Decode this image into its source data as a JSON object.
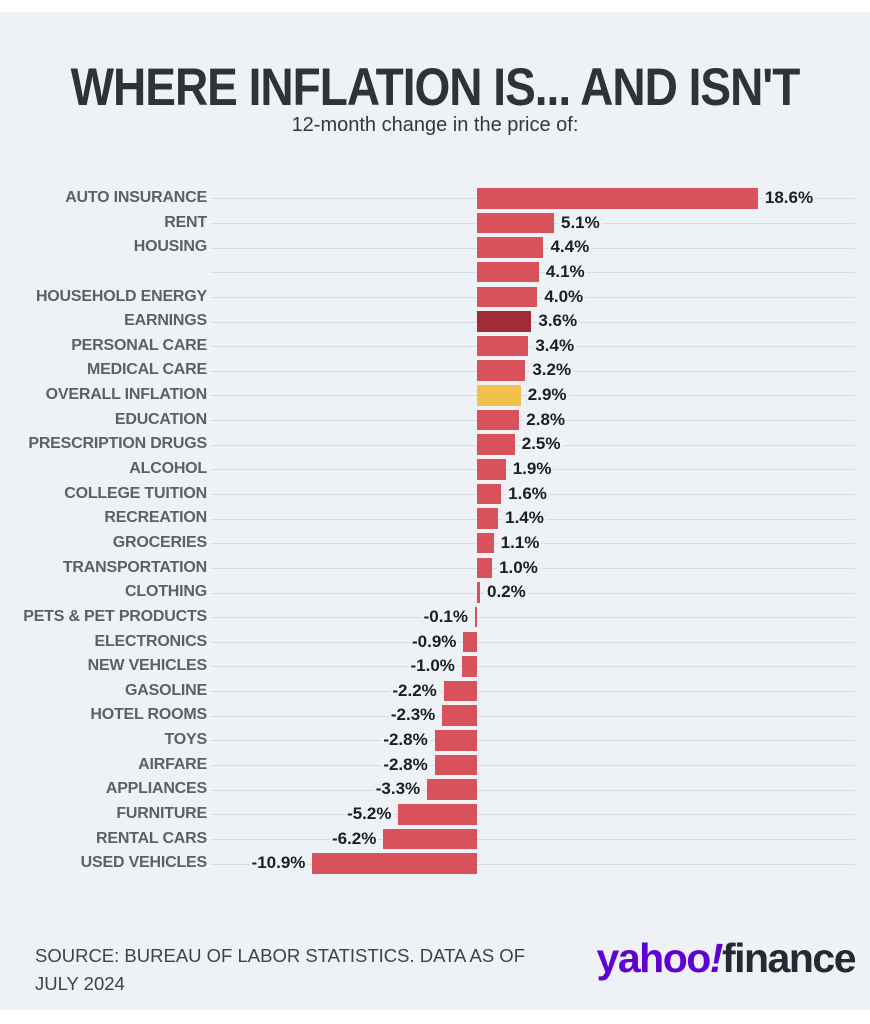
{
  "chart_data": {
    "type": "bar",
    "orientation": "horizontal",
    "title": "WHERE INFLATION IS... AND ISN'T",
    "subtitle": "12-month change in the price of:",
    "unit": "%",
    "xlim": [
      -12,
      20
    ],
    "grid": true,
    "colors": {
      "red": "#d8525b",
      "darkRed": "#a02c37",
      "gold": "#f2c14b"
    },
    "bars": [
      {
        "label": "AUTO INSURANCE",
        "value": 18.6,
        "display": "18.6%",
        "color": "red"
      },
      {
        "label": "RENT",
        "value": 5.1,
        "display": "5.1%",
        "color": "red"
      },
      {
        "label": "HOUSING",
        "value": 4.4,
        "display": "4.4%",
        "color": "red"
      },
      {
        "label": "",
        "value": 4.1,
        "display": "4.1%",
        "color": "red"
      },
      {
        "label": "HOUSEHOLD ENERGY",
        "value": 4.0,
        "display": "4.0%",
        "color": "red"
      },
      {
        "label": "EARNINGS",
        "value": 3.6,
        "display": "3.6%",
        "color": "darkRed"
      },
      {
        "label": "PERSONAL CARE",
        "value": 3.4,
        "display": "3.4%",
        "color": "red"
      },
      {
        "label": "MEDICAL CARE",
        "value": 3.2,
        "display": "3.2%",
        "color": "red"
      },
      {
        "label": "OVERALL INFLATION",
        "value": 2.9,
        "display": "2.9%",
        "color": "gold"
      },
      {
        "label": "EDUCATION",
        "value": 2.8,
        "display": "2.8%",
        "color": "red"
      },
      {
        "label": "PRESCRIPTION DRUGS",
        "value": 2.5,
        "display": "2.5%",
        "color": "red"
      },
      {
        "label": "ALCOHOL",
        "value": 1.9,
        "display": "1.9%",
        "color": "red"
      },
      {
        "label": "COLLEGE TUITION",
        "value": 1.6,
        "display": "1.6%",
        "color": "red"
      },
      {
        "label": "RECREATION",
        "value": 1.4,
        "display": "1.4%",
        "color": "red"
      },
      {
        "label": "GROCERIES",
        "value": 1.1,
        "display": "1.1%",
        "color": "red"
      },
      {
        "label": "TRANSPORTATION",
        "value": 1.0,
        "display": "1.0%",
        "color": "red"
      },
      {
        "label": "CLOTHING",
        "value": 0.2,
        "display": "0.2%",
        "color": "red"
      },
      {
        "label": "PETS & PET PRODUCTS",
        "value": -0.1,
        "display": "-0.1%",
        "color": "red"
      },
      {
        "label": "ELECTRONICS",
        "value": -0.9,
        "display": "-0.9%",
        "color": "red"
      },
      {
        "label": "NEW VEHICLES",
        "value": -1.0,
        "display": "-1.0%",
        "color": "red"
      },
      {
        "label": "GASOLINE",
        "value": -2.2,
        "display": "-2.2%",
        "color": "red"
      },
      {
        "label": "HOTEL ROOMS",
        "value": -2.3,
        "display": "-2.3%",
        "color": "red"
      },
      {
        "label": "TOYS",
        "value": -2.8,
        "display": "-2.8%",
        "color": "red"
      },
      {
        "label": "AIRFARE",
        "value": -2.8,
        "display": "-2.8%",
        "color": "red"
      },
      {
        "label": "APPLIANCES",
        "value": -3.3,
        "display": "-3.3%",
        "color": "red"
      },
      {
        "label": "FURNITURE",
        "value": -5.2,
        "display": "-5.2%",
        "color": "red"
      },
      {
        "label": "RENTAL CARS",
        "value": -6.2,
        "display": "-6.2%",
        "color": "red"
      },
      {
        "label": "USED VEHICLES",
        "value": -10.9,
        "display": "-10.9%",
        "color": "red"
      }
    ]
  },
  "footer": {
    "source_lines": [
      "SOURCE: BUREAU OF LABOR STATISTICS. DATA AS OF",
      "JULY 2024"
    ]
  },
  "logo": {
    "yahoo": "yahoo",
    "bang": "!",
    "finance": "finance",
    "purple": "#5F01D1",
    "dark": "#232a31"
  },
  "style": {
    "background": "#eef1f5",
    "bar_default": "#d8525b",
    "bar_highlight_dark": "#a02c37",
    "bar_highlight_gold": "#f2c14b"
  }
}
